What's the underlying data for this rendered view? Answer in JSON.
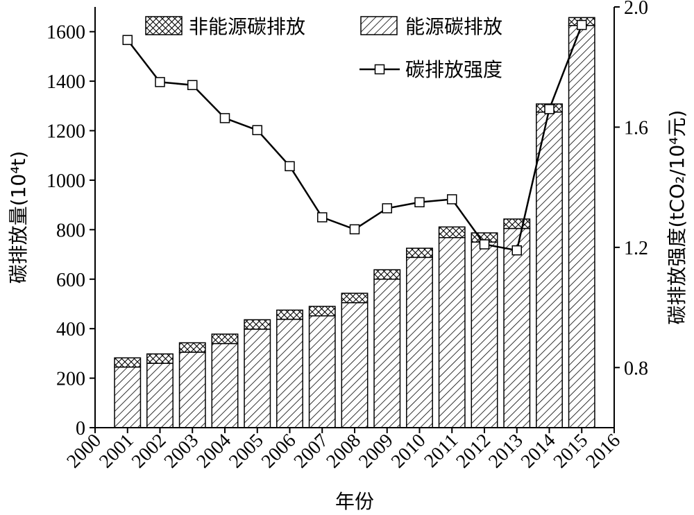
{
  "chart_data": {
    "type": "bar",
    "stacked": true,
    "categories": [
      "2001",
      "2002",
      "2003",
      "2004",
      "2005",
      "2006",
      "2007",
      "2008",
      "2009",
      "2010",
      "2011",
      "2012",
      "2013",
      "2014",
      "2015"
    ],
    "x_tick_labels": [
      "2000",
      "2001",
      "2002",
      "2003",
      "2004",
      "2005",
      "2006",
      "2007",
      "2008",
      "2009",
      "2010",
      "2011",
      "2012",
      "2013",
      "2014",
      "2015",
      "2016"
    ],
    "x_range": [
      2000,
      2016
    ],
    "xlabel": "年份",
    "ylabel_left": "碳排放量(10⁴t)",
    "ylabel_right": "碳排放强度(tCO₂/10⁴元)",
    "ylim_left": [
      0,
      1700
    ],
    "yticks_left": [
      0,
      200,
      400,
      600,
      800,
      1000,
      1200,
      1400,
      1600
    ],
    "ylim_right": [
      0.6,
      2.0
    ],
    "yticks_right": [
      "0.8",
      "1.2",
      "1.6",
      "2.0"
    ],
    "legend_position": "top",
    "series": [
      {
        "name": "能源碳排放",
        "type": "bar",
        "pattern": "diagonal-hatch",
        "values": [
          245,
          260,
          305,
          340,
          398,
          438,
          452,
          505,
          600,
          688,
          768,
          750,
          805,
          1275,
          1625
        ]
      },
      {
        "name": "非能源碳排放",
        "type": "bar",
        "pattern": "cross-hatch",
        "values": [
          37,
          38,
          38,
          38,
          38,
          37,
          38,
          38,
          38,
          37,
          43,
          37,
          38,
          33,
          32
        ]
      },
      {
        "name": "碳排放强度",
        "type": "line",
        "axis": "right",
        "marker": "square",
        "values": [
          1.89,
          1.75,
          1.74,
          1.63,
          1.59,
          1.47,
          1.3,
          1.26,
          1.33,
          1.35,
          1.36,
          1.21,
          1.19,
          1.66,
          1.94
        ]
      }
    ],
    "colors": {
      "ink": "#000000",
      "background": "#ffffff",
      "marker_fill": "#ffffff"
    }
  }
}
